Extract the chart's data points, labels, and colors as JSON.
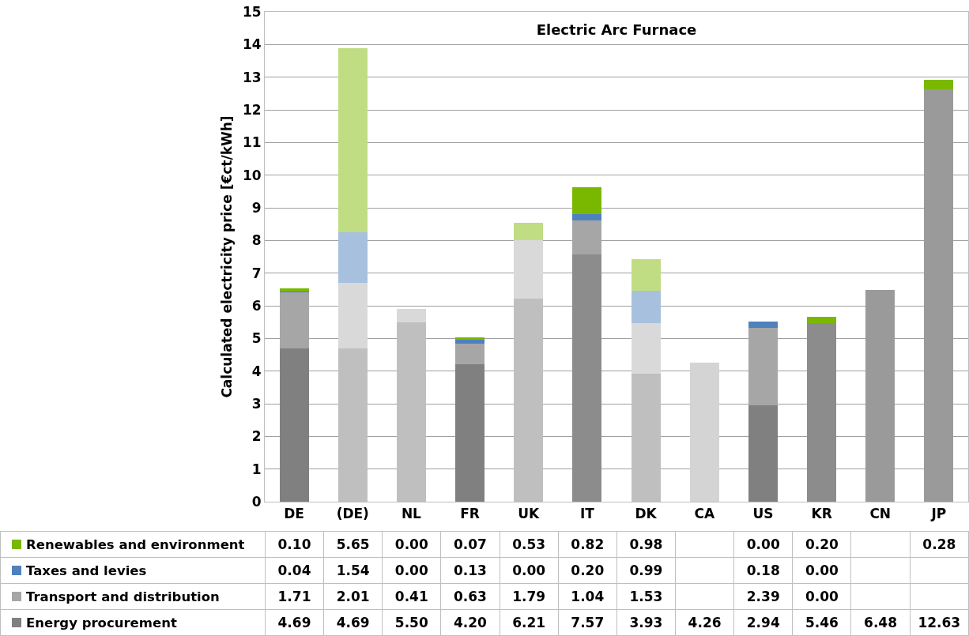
{
  "chart_data": {
    "type": "bar",
    "stacked": true,
    "title": "Electric Arc Furnace",
    "ylabel": "Calculated electricity price [€ct/kWh]",
    "categories": [
      "DE",
      "(DE)",
      "NL",
      "FR",
      "UK",
      "IT",
      "DK",
      "CA",
      "US",
      "KR",
      "CN",
      "JP"
    ],
    "ylim": [
      0,
      15
    ],
    "yticks": [
      0,
      1,
      2,
      3,
      4,
      5,
      6,
      7,
      8,
      9,
      10,
      11,
      12,
      13,
      14,
      15
    ],
    "grid": "y",
    "legend": "bottom",
    "series": [
      {
        "name": "Energy procurement",
        "color": "#808080",
        "colors": [
          "#808080",
          "#bfbfbf",
          "#bfbfbf",
          "#808080",
          "#bfbfbf",
          "#8c8c8c",
          "#bfbfbf",
          "#d4d4d4",
          "#808080",
          "#8c8c8c",
          "#9a9a9a",
          "#9a9a9a"
        ],
        "values": [
          4.69,
          4.69,
          5.5,
          4.2,
          6.21,
          7.57,
          3.93,
          4.26,
          2.94,
          5.46,
          6.48,
          12.63
        ],
        "value_labels": [
          "4.69",
          "4.69",
          "5.50",
          "4.20",
          "6.21",
          "7.57",
          "3.93",
          "4.26",
          "2.94",
          "5.46",
          "6.48",
          "12.63"
        ]
      },
      {
        "name": "Transport and distribution",
        "color": "#a6a6a6",
        "colors": [
          "#a6a6a6",
          "#d9d9d9",
          "#d9d9d9",
          "#a6a6a6",
          "#d9d9d9",
          "#a6a6a6",
          "#d9d9d9",
          "#d9d9d9",
          "#a6a6a6",
          "#a6a6a6",
          "#a6a6a6",
          "#a6a6a6"
        ],
        "values": [
          1.71,
          2.01,
          0.41,
          0.63,
          1.79,
          1.04,
          1.53,
          null,
          2.39,
          0,
          null,
          null
        ],
        "value_labels": [
          "1.71",
          "2.01",
          "0.41",
          "0.63",
          "1.79",
          "1.04",
          "1.53",
          null,
          "2.39",
          "0.00",
          null,
          null
        ]
      },
      {
        "name": "Taxes and levies",
        "color": "#4f81bd",
        "colors": [
          "#4f81bd",
          "#a7c0de",
          "#a7c0de",
          "#4f81bd",
          "#a7c0de",
          "#4f81bd",
          "#a7c0de",
          "#4f81bd",
          "#4f81bd",
          "#4f81bd",
          "#4f81bd",
          "#4f81bd"
        ],
        "values": [
          0.04,
          1.54,
          0,
          0.13,
          0,
          0.2,
          0.99,
          null,
          0.18,
          0,
          null,
          null
        ],
        "value_labels": [
          "0.04",
          "1.54",
          "0.00",
          "0.13",
          "0.00",
          "0.20",
          "0.99",
          null,
          "0.18",
          "0.00",
          null,
          null
        ]
      },
      {
        "name": "Renewables and environment",
        "color": "#7ab800",
        "colors": [
          "#7ab800",
          "#c0dd84",
          "#c0dd84",
          "#7ab800",
          "#c0dd84",
          "#7ab800",
          "#c0dd84",
          "#7ab800",
          "#7ab800",
          "#7ab800",
          "#7ab800",
          "#7ab800"
        ],
        "values": [
          0.1,
          5.65,
          0,
          0.07,
          0.53,
          0.82,
          0.98,
          null,
          0,
          0.2,
          null,
          0.28
        ],
        "value_labels": [
          "0.10",
          "5.65",
          "0.00",
          "0.07",
          "0.53",
          "0.82",
          "0.98",
          null,
          "0.00",
          "0.20",
          null,
          "0.28"
        ]
      }
    ]
  }
}
